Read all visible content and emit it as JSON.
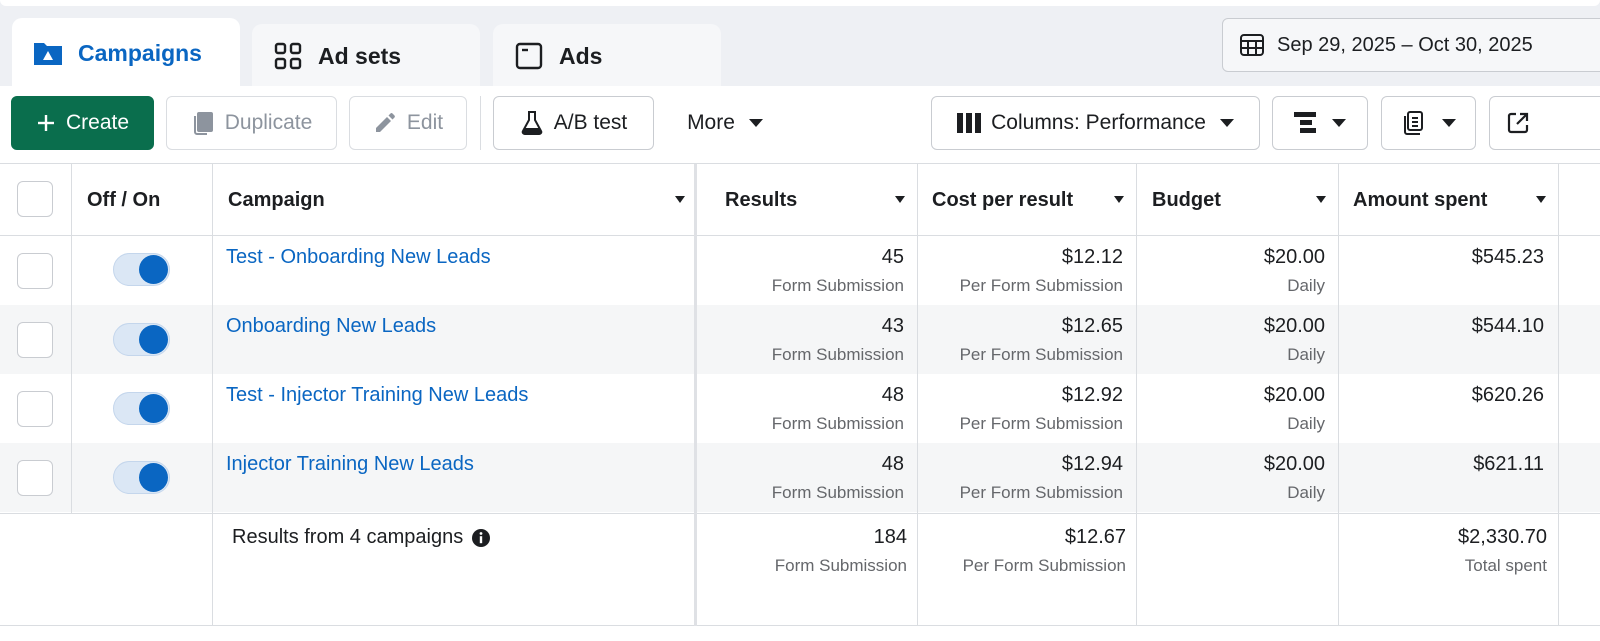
{
  "tabs": [
    {
      "label": "Campaigns",
      "icon": "campaigns-folder-icon",
      "active": true
    },
    {
      "label": "Ad sets",
      "icon": "grid-icon",
      "active": false
    },
    {
      "label": "Ads",
      "icon": "ad-window-icon",
      "active": false
    }
  ],
  "date_range": {
    "label": "Sep 29, 2025 – Oct 30, 2025",
    "icon": "calendar-table-icon"
  },
  "toolbar": {
    "create": "Create",
    "duplicate": "Duplicate",
    "edit": "Edit",
    "ab_test": "A/B test",
    "more": "More",
    "columns": "Columns: Performance"
  },
  "table": {
    "headers": {
      "toggle": "Off / On",
      "campaign": "Campaign",
      "results": "Results",
      "cost_per_result": "Cost per result",
      "budget": "Budget",
      "amount_spent": "Amount spent"
    },
    "rows": [
      {
        "name": "Test - Onboarding New Leads",
        "on": true,
        "results": "45",
        "results_sub": "Form Submission",
        "cpr": "$12.12",
        "cpr_sub": "Per Form Submission",
        "budget": "$20.00",
        "budget_sub": "Daily",
        "spent": "$545.23"
      },
      {
        "name": "Onboarding New Leads",
        "on": true,
        "results": "43",
        "results_sub": "Form Submission",
        "cpr": "$12.65",
        "cpr_sub": "Per Form Submission",
        "budget": "$20.00",
        "budget_sub": "Daily",
        "spent": "$544.10"
      },
      {
        "name": "Test - Injector Training New Leads",
        "on": true,
        "results": "48",
        "results_sub": "Form Submission",
        "cpr": "$12.92",
        "cpr_sub": "Per Form Submission",
        "budget": "$20.00",
        "budget_sub": "Daily",
        "spent": "$620.26"
      },
      {
        "name": "Injector Training New Leads",
        "on": true,
        "results": "48",
        "results_sub": "Form Submission",
        "cpr": "$12.94",
        "cpr_sub": "Per Form Submission",
        "budget": "$20.00",
        "budget_sub": "Daily",
        "spent": "$621.11"
      }
    ],
    "summary": {
      "label": "Results from 4 campaigns",
      "results": "184",
      "results_sub": "Form Submission",
      "cpr": "$12.67",
      "cpr_sub": "Per Form Submission",
      "spent": "$2,330.70",
      "spent_sub": "Total spent"
    }
  },
  "colors": {
    "accent": "#0a66c2",
    "create": "#0a6e4d"
  }
}
